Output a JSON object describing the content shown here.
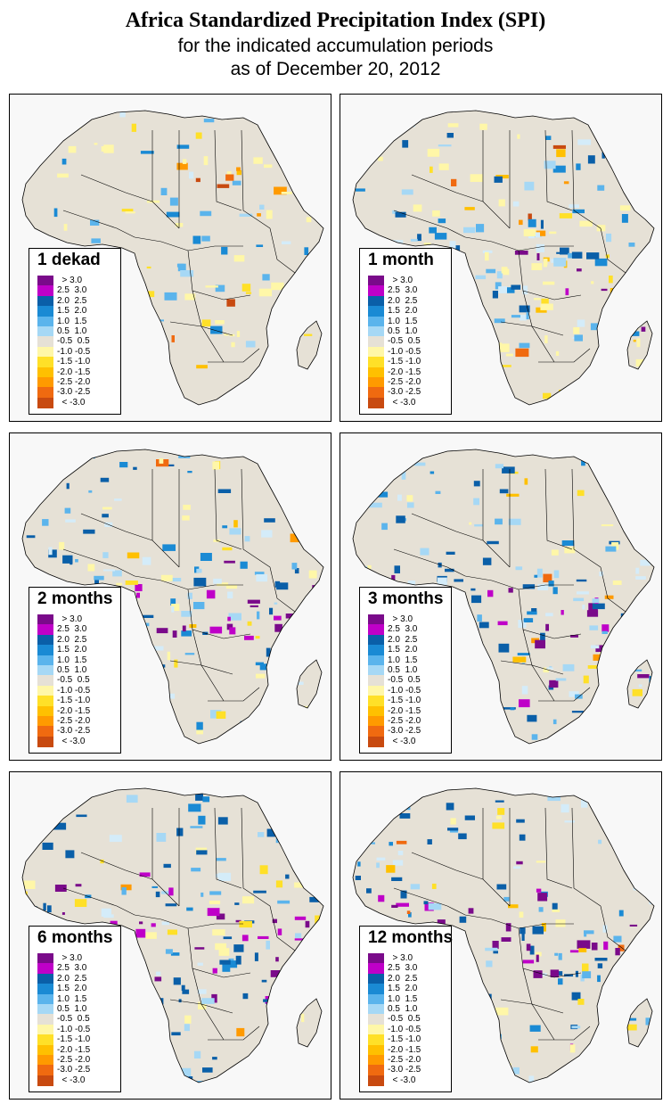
{
  "header": {
    "title": "Africa Standardized Precipitation Index (SPI)",
    "subtitle_line1": "for the indicated accumulation periods",
    "subtitle_line2": "as of December 20, 2012"
  },
  "colors": {
    "land_neutral": "#e6e1d6",
    "background": "#f8f8f8",
    "border": "#000000",
    "wet_palette": [
      "#d4ecf9",
      "#a6d8f5",
      "#5bb4ec",
      "#1a8ad4",
      "#0a5fa8"
    ],
    "dry_palette": [
      "#fff7a8",
      "#ffe028",
      "#ffc000",
      "#ff9a00",
      "#f06a10",
      "#c84a10"
    ],
    "extreme_wet": [
      "#bf00c8",
      "#7a0a8a"
    ]
  },
  "legend": {
    "entries": [
      {
        "label": "  > 3.0",
        "color": "#7a0a8a"
      },
      {
        "label": "2.5  3.0",
        "color": "#bf00c8"
      },
      {
        "label": "2.0  2.5",
        "color": "#0a5fa8"
      },
      {
        "label": "1.5  2.0",
        "color": "#1a8ad4"
      },
      {
        "label": "1.0  1.5",
        "color": "#5bb4ec"
      },
      {
        "label": "0.5  1.0",
        "color": "#a6d8f5"
      },
      {
        "label": "-0.5  0.5",
        "color": "#e6e1d6"
      },
      {
        "label": "-1.0 -0.5",
        "color": "#fff7a8"
      },
      {
        "label": "-1.5 -1.0",
        "color": "#ffe028"
      },
      {
        "label": "-2.0 -1.5",
        "color": "#ffc000"
      },
      {
        "label": "-2.5 -2.0",
        "color": "#ff9a00"
      },
      {
        "label": "-3.0 -2.5",
        "color": "#f06a10"
      },
      {
        "label": "  < -3.0",
        "color": "#c84a10"
      }
    ]
  },
  "panels": [
    {
      "label": "1 dekad",
      "wetness": 0.25,
      "dryness": 0.22,
      "extreme": 0.12
    },
    {
      "label": "1 month",
      "wetness": 0.55,
      "dryness": 0.2,
      "extreme": 0.2
    },
    {
      "label": "2 months",
      "wetness": 0.75,
      "dryness": 0.12,
      "extreme": 0.45
    },
    {
      "label": "3 months",
      "wetness": 0.8,
      "dryness": 0.12,
      "extreme": 0.42
    },
    {
      "label": "6 months",
      "wetness": 0.85,
      "dryness": 0.1,
      "extreme": 0.5
    },
    {
      "label": "12 months",
      "wetness": 0.85,
      "dryness": 0.12,
      "extreme": 0.45
    }
  ]
}
